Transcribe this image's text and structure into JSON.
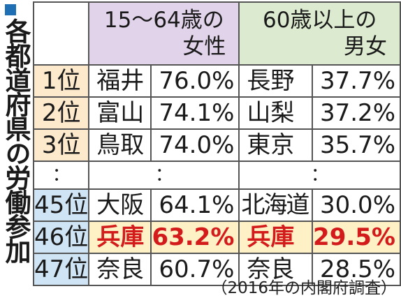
{
  "title": "各都道府県の労働参加率",
  "colors": {
    "title_mark": "#1f6fb5",
    "header_women": "#e1d3ea",
    "header_seniors": "#dcebd0",
    "rank_top": "#fde9cc",
    "rank_low": "#cfe4f5",
    "highlight_row": "#fdf1c5",
    "highlight_text": "#d41b1b"
  },
  "headers": {
    "women": "15～64歳の\n女性",
    "women_l1": "15～64歳の",
    "women_l2": "女性",
    "seniors_l1": "60歳以上の",
    "seniors_l2": "男女"
  },
  "rows": [
    {
      "rank": "1位",
      "pref_a": "福井",
      "val_a": "76.0%",
      "pref_b": "長野",
      "val_b": "37.7%"
    },
    {
      "rank": "2位",
      "pref_a": "富山",
      "val_a": "74.1%",
      "pref_b": "山梨",
      "val_b": "37.2%"
    },
    {
      "rank": "3位",
      "pref_a": "鳥取",
      "val_a": "74.0%",
      "pref_b": "東京",
      "val_b": "35.7%"
    },
    {
      "rank": "：",
      "pref_a": "",
      "val_a": "：",
      "pref_b": "",
      "val_b": "："
    },
    {
      "rank": "45位",
      "pref_a": "大阪",
      "val_a": "64.1%",
      "pref_b": "北海道",
      "val_b": "30.0%"
    },
    {
      "rank": "46位",
      "pref_a": "兵庫",
      "val_a": "63.2%",
      "pref_b": "兵庫",
      "val_b": "29.5%"
    },
    {
      "rank": "47位",
      "pref_a": "奈良",
      "val_a": "60.7%",
      "pref_b": "奈良",
      "val_b": "28.5%"
    }
  ],
  "source": "（2016年の内閣府調査）"
}
